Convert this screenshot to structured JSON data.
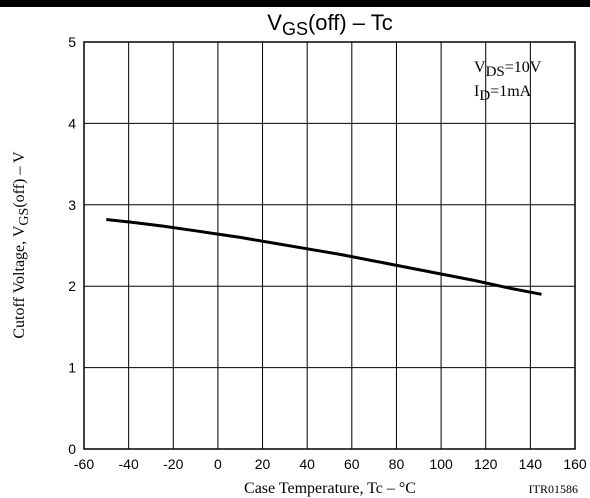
{
  "chart_data": {
    "type": "line",
    "title": {
      "main": "V",
      "sub": "GS",
      "rest": "(off)  –  Tc"
    },
    "xlabel": "Case Temperature, Tc  –  °C",
    "ylabel": {
      "main": "Cutoff Voltage, V",
      "sub": "GS",
      "rest": "(off)  –  V"
    },
    "xlim": [
      -60,
      160
    ],
    "ylim": [
      0,
      5
    ],
    "xticks": [
      -60,
      -40,
      -20,
      0,
      20,
      40,
      60,
      80,
      100,
      120,
      140,
      160
    ],
    "yticks": [
      0,
      1,
      2,
      3,
      4,
      5
    ],
    "grid": true,
    "conditions": [
      {
        "main": "V",
        "sub": "DS",
        "rest": "=10V"
      },
      {
        "main": "I",
        "sub": "D",
        "rest": "=1mA"
      }
    ],
    "series": [
      {
        "x": [
          -50,
          -40,
          -25,
          -10,
          0,
          10,
          25,
          40,
          55,
          70,
          85,
          100,
          115,
          130,
          145
        ],
        "y": [
          2.82,
          2.79,
          2.74,
          2.68,
          2.64,
          2.6,
          2.53,
          2.46,
          2.39,
          2.31,
          2.23,
          2.15,
          2.07,
          1.98,
          1.9
        ]
      }
    ]
  },
  "code": "ITR01586",
  "colors": {
    "line": "#000000",
    "grid": "#000000",
    "background": "#ffffff"
  }
}
